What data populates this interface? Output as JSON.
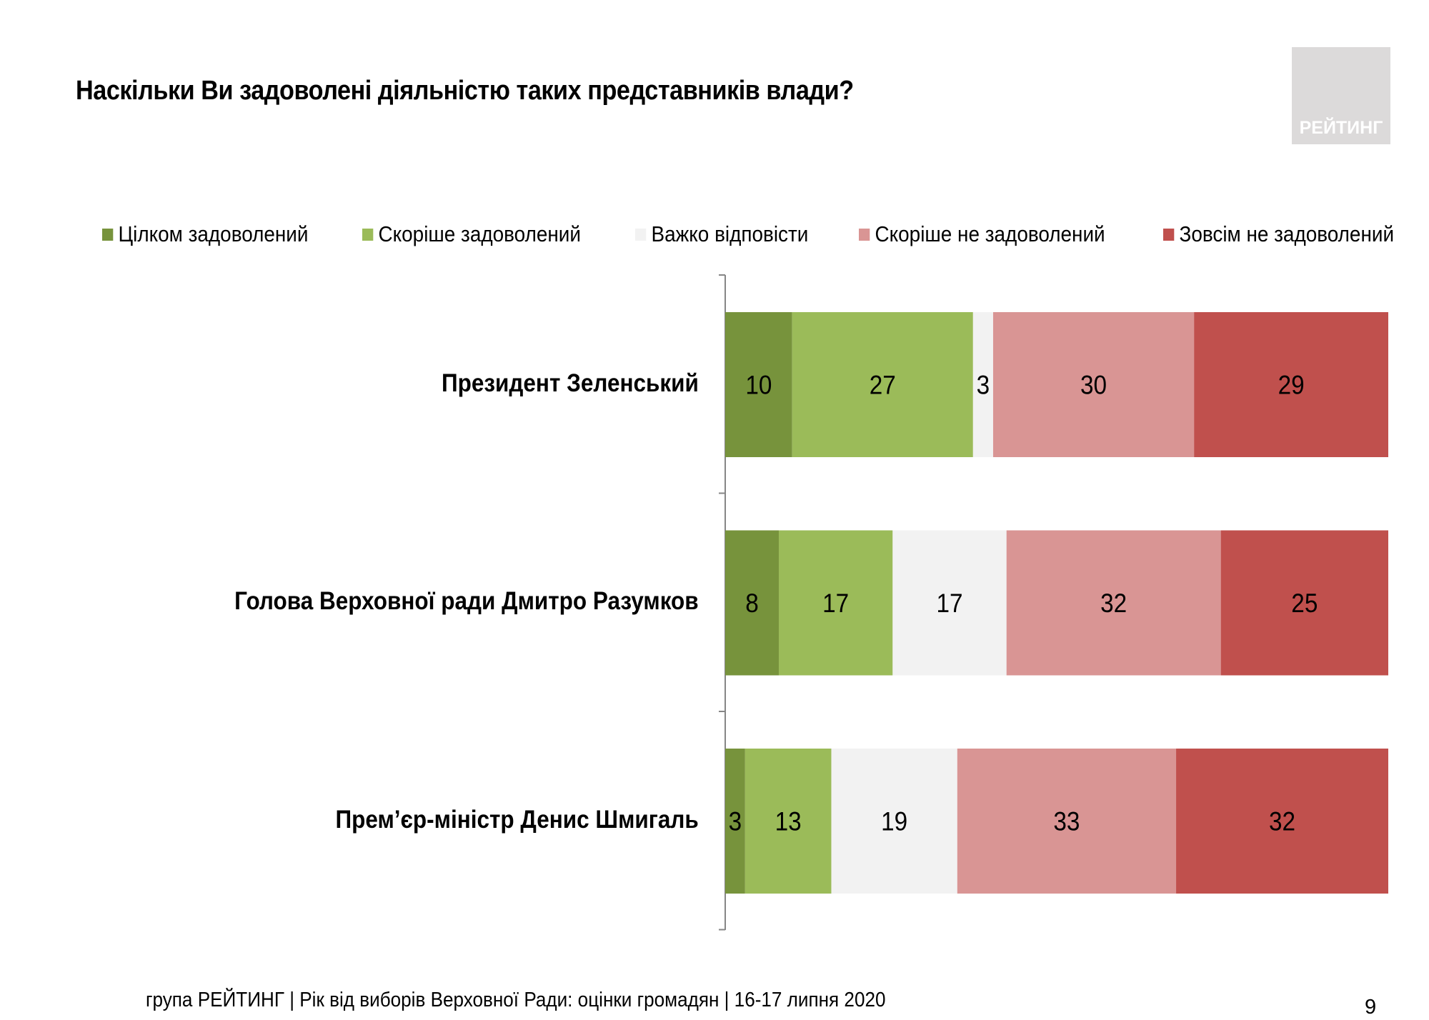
{
  "title": "Наскільки Ви задоволені діяльністю таких представників влади?",
  "logo": "РЕЙТИНГ",
  "footer": "група РЕЙТИНГ | Рік від виборів Верховної Ради: оцінки громадян | 16-17 липня 2020",
  "page_number": "9",
  "chart_data": {
    "type": "bar",
    "orientation": "horizontal",
    "stacked": true,
    "legend_position": "top",
    "categories": [
      "Президент Зеленський",
      "Голова Верховної ради Дмитро Разумков",
      "Прем’єр-міністр Денис Шмигаль"
    ],
    "series": [
      {
        "name": "Цілком задоволений",
        "color": "#77933c",
        "values": [
          10,
          8,
          3
        ]
      },
      {
        "name": "Скоріше задоволений",
        "color": "#9bbb59",
        "values": [
          27,
          17,
          13
        ]
      },
      {
        "name": "Важко відповісти",
        "color": "#f2f2f2",
        "values": [
          3,
          17,
          19
        ]
      },
      {
        "name": "Скоріше не задоволений",
        "color": "#d99594",
        "values": [
          30,
          32,
          33
        ]
      },
      {
        "name": "Зовсім не задоволений",
        "color": "#c0504d",
        "values": [
          29,
          25,
          32
        ]
      }
    ]
  }
}
